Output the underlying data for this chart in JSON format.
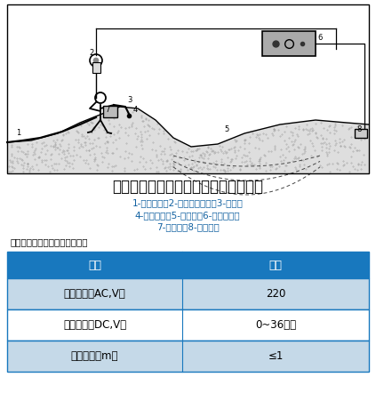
{
  "title": "水枪法防渗土工膜渗漏破损探测工况图",
  "subtitle_line1": "1-供水水管；2-声音报警耳机；3-水枪；",
  "subtitle_line2": "4-破损孔洞；5-土工膜；6-供电电源；",
  "subtitle_line3": "7-探测仪；8-接地电极",
  "table_header_label": "水枪法探测设备主要技术指标：",
  "table_col1_header": "项目",
  "table_col2_header": "指标",
  "table_rows": [
    [
      "输入电压（AC,V）",
      "220"
    ],
    [
      "输出电压（DC,V）",
      "0~36可调"
    ],
    [
      "探测宽度（m）",
      "≤1"
    ]
  ],
  "header_bg_color": "#1878BE",
  "header_text_color": "#FFFFFF",
  "row_alt_color": "#C5D9E8",
  "row_bg_color": "#FFFFFF",
  "border_color": "#1878BE",
  "bg_color": "#FFFFFF",
  "title_color": "#000000",
  "subtitle_color": "#1060A0",
  "table_label_color": "#000000"
}
